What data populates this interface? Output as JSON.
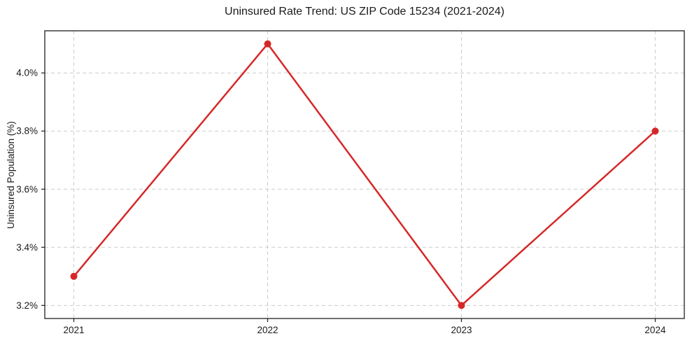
{
  "chart_data": {
    "type": "line",
    "title": "Uninsured Rate Trend: US ZIP Code 15234 (2021-2024)",
    "xlabel": "",
    "ylabel": "Uninsured Population (%)",
    "x": [
      2021,
      2022,
      2023,
      2024
    ],
    "xtick_labels": [
      "2021",
      "2022",
      "2023",
      "2024"
    ],
    "series": [
      {
        "name": "Uninsured rate",
        "values": [
          3.3,
          4.1,
          3.2,
          3.8
        ]
      }
    ],
    "yticks": [
      3.2,
      3.4,
      3.6,
      3.8,
      4.0
    ],
    "ytick_labels": [
      "3.2%",
      "3.4%",
      "3.6%",
      "3.8%",
      "4.0%"
    ],
    "ylim": [
      3.155,
      4.145
    ],
    "xlim": [
      2020.85,
      2024.15
    ],
    "grid": true,
    "grid_style": "dashed",
    "legend_position": "none",
    "colors": {
      "line": "#d62728",
      "marker": "#d62728",
      "grid": "#cccccc",
      "spine": "#1f1f1f",
      "background": "#ffffff"
    }
  }
}
